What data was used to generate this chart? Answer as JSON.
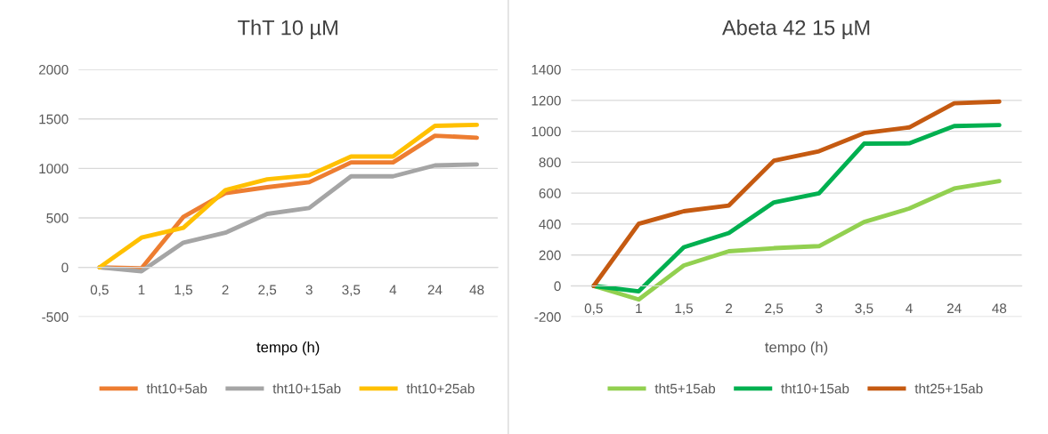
{
  "chart_data": [
    {
      "type": "line",
      "title": "ThT 10 µM",
      "xlabel": "tempo (h)",
      "categories": [
        "0,5",
        "1",
        "1,5",
        "2",
        "2,5",
        "3",
        "3,5",
        "4",
        "24",
        "48"
      ],
      "series": [
        {
          "name": "tht10+5ab",
          "color": "#ed7d31",
          "values": [
            0,
            -10,
            510,
            750,
            810,
            860,
            1060,
            1060,
            1330,
            1310
          ]
        },
        {
          "name": "tht10+15ab",
          "color": "#a5a5a5",
          "values": [
            0,
            -40,
            250,
            350,
            540,
            600,
            920,
            920,
            1030,
            1040
          ]
        },
        {
          "name": "tht10+25ab",
          "color": "#ffc000",
          "values": [
            0,
            300,
            400,
            780,
            890,
            930,
            1120,
            1120,
            1430,
            1440
          ]
        }
      ],
      "ylim": [
        -500,
        2000
      ],
      "yticks": [
        -500,
        0,
        500,
        1000,
        1500,
        2000
      ],
      "grid": "y",
      "legend": "bottom",
      "marker": "none",
      "line_style": "solid"
    },
    {
      "type": "line",
      "title": "Abeta 42 15 µM",
      "xlabel": "tempo (h)",
      "categories": [
        "0,5",
        "1",
        "1,5",
        "2",
        "2,5",
        "3",
        "3,5",
        "4",
        "24",
        "48"
      ],
      "series": [
        {
          "name": "tht5+15ab",
          "color": "#92d050",
          "values": [
            0,
            -88,
            132,
            224,
            244,
            257,
            413,
            500,
            630,
            678
          ]
        },
        {
          "name": "tht10+15ab",
          "color": "#00b050",
          "values": [
            0,
            -35,
            250,
            342,
            540,
            599,
            920,
            922,
            1034,
            1040
          ]
        },
        {
          "name": "tht25+15ab",
          "color": "#c55a11",
          "values": [
            0,
            402,
            483,
            520,
            810,
            871,
            988,
            1025,
            1181,
            1192
          ]
        }
      ],
      "ylim": [
        -200,
        1400
      ],
      "yticks": [
        -200,
        0,
        200,
        400,
        600,
        800,
        1000,
        1200,
        1400
      ],
      "grid": "y",
      "legend": "bottom",
      "marker": "none",
      "line_style": "solid"
    }
  ]
}
